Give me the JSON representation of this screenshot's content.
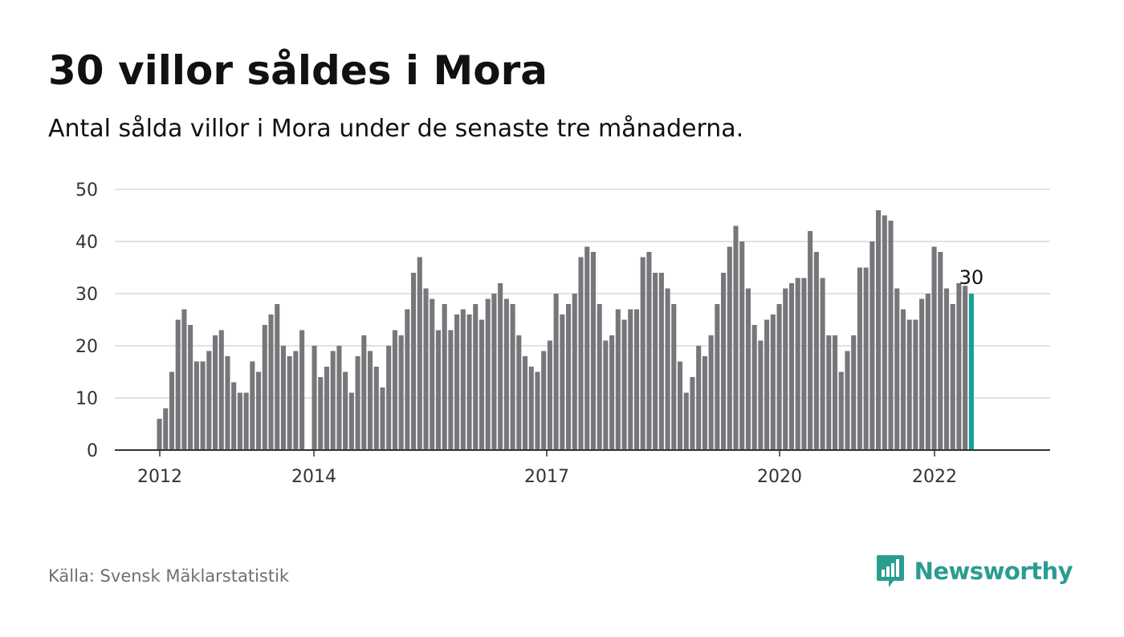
{
  "title": "30 villor såldes i Mora",
  "subtitle": "Antal sålda villor i Mora under de senaste tre månaderna.",
  "source": "Källa: Svensk Mäklarstatistik",
  "brand": {
    "name": "Newsworthy",
    "icon": "newsworthy-logo-icon",
    "color": "#2a9d91"
  },
  "colors": {
    "bar": "#77767b",
    "highlight": "#17a093",
    "grid": "#d9d9d9",
    "axis": "#333333"
  },
  "chart_data": {
    "type": "bar",
    "y_ticks": [
      0,
      10,
      20,
      30,
      40,
      50
    ],
    "ylim": [
      0,
      50
    ],
    "x_ticks": [
      "2012",
      "2014",
      "2017",
      "2020",
      "2022"
    ],
    "grid": "horizontal",
    "highlight_label": "30",
    "series": [
      {
        "values": [
          6,
          8,
          15,
          25,
          27,
          24,
          17,
          17,
          19,
          22,
          23,
          18,
          13,
          11,
          11,
          17,
          15,
          24,
          26,
          28,
          20,
          18,
          19,
          23,
          0,
          20,
          14,
          16,
          19,
          20,
          15,
          11,
          18,
          22,
          19,
          16,
          12,
          20,
          23,
          22,
          27,
          34,
          37,
          31,
          29,
          23,
          28,
          23,
          26,
          27,
          26,
          28,
          25,
          29,
          30,
          32,
          29,
          28,
          22,
          18,
          16,
          15,
          19,
          21,
          30,
          26,
          28,
          30,
          37,
          39,
          38,
          28,
          21,
          22,
          27,
          25,
          27,
          27,
          37,
          38,
          34,
          34,
          31,
          28,
          17,
          11,
          14,
          20,
          18,
          22,
          28,
          34,
          39,
          43,
          40,
          31,
          24,
          21,
          25,
          26,
          28,
          31,
          32,
          33,
          33,
          42,
          38,
          33,
          22,
          22,
          15,
          19,
          22,
          35,
          35,
          40,
          46,
          45,
          44,
          31,
          27,
          25,
          25,
          29,
          30,
          39,
          38,
          31,
          28,
          32,
          31.5,
          30
        ]
      }
    ]
  }
}
